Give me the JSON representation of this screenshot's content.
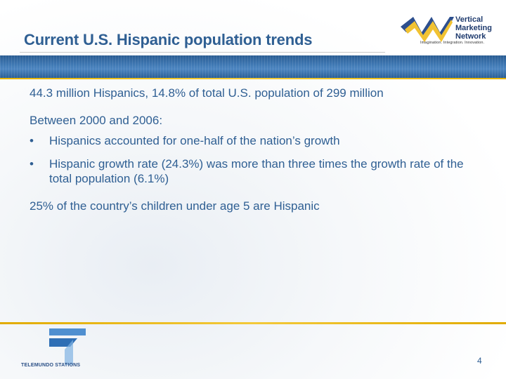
{
  "slide": {
    "title": "Current U.S. Hispanic population trends",
    "line1": "44.3 million Hispanics, 14.8% of total U.S. population of 299 million",
    "line2": "Between 2000 and 2006:",
    "bullets": [
      {
        "marker": "•",
        "text": "Hispanics accounted for one-half of the nation’s growth"
      },
      {
        "marker": "•",
        "text": "Hispanic growth rate (24.3%) was more than three times the growth rate of the total population (6.1%)"
      }
    ],
    "line3": "25% of the country’s children under age 5 are Hispanic",
    "page_number": "4"
  },
  "logo": {
    "line1": "Vertical",
    "line2": "Marketing",
    "line3": "Network",
    "tagline": "Imagination. Integration. Innovation."
  },
  "footer_logo": {
    "label": "TELEMUNDO STATIONS"
  },
  "colors": {
    "title_blue": "#2f5f93",
    "band_blue": "#3f78b3",
    "gold": "#f3c93a"
  }
}
